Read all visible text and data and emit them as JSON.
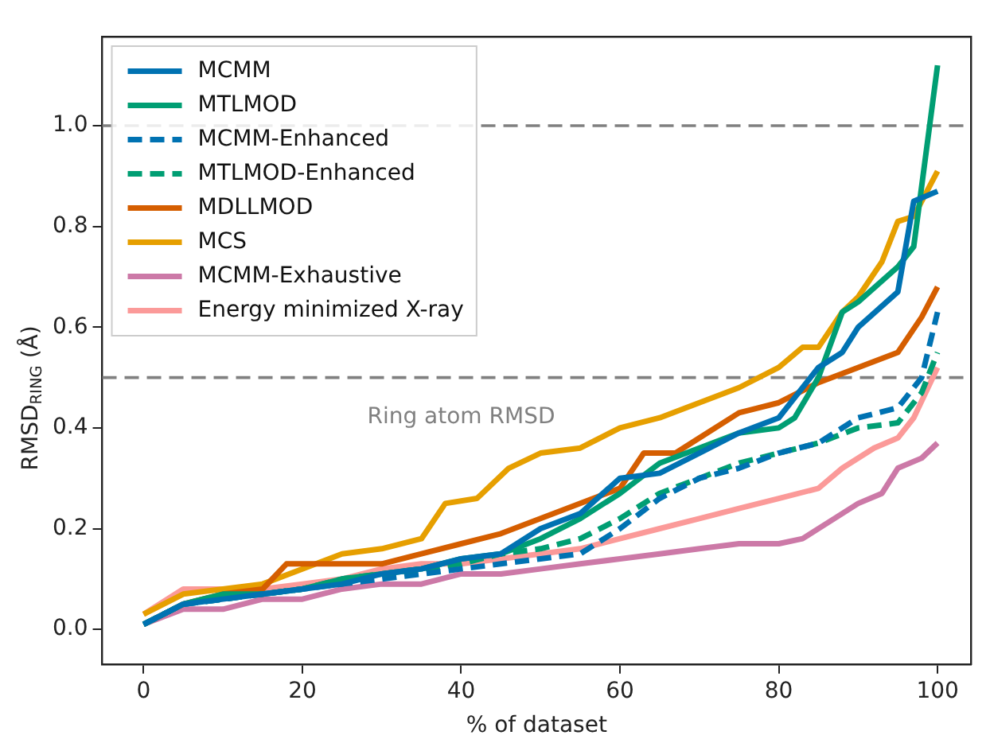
{
  "chart_data": {
    "type": "line",
    "xlabel": "% of dataset",
    "ylabel": "RMSD$_{RING}$ (Å)",
    "xlim": [
      -5.2,
      104.2
    ],
    "ylim": [
      -0.069,
      1.177
    ],
    "xticks": [
      0,
      20,
      40,
      60,
      80,
      100
    ],
    "yticks": [
      {
        "value": 0,
        "label": "0.0"
      },
      {
        "value": 0.2,
        "label": "0.2"
      },
      {
        "value": 0.4,
        "label": "0.4"
      },
      {
        "value": 0.6,
        "label": "0.6"
      },
      {
        "value": 0.8,
        "label": "0.8"
      },
      {
        "value": 1,
        "label": "1.0"
      }
    ],
    "grid": false,
    "legend": "top left",
    "marker": "none",
    "ref_lines": [
      {
        "axis": "y",
        "value": 1.0,
        "color": "#808080",
        "line_style": "dashed"
      },
      {
        "axis": "y",
        "value": 0.5,
        "label": "Ring atom RMSD",
        "color": "#808080",
        "line_style": "dashed"
      }
    ],
    "series": [
      {
        "name": "MCMM",
        "color": "#0072b2",
        "line_style": "solid",
        "x": [
          0,
          5,
          10,
          15,
          20,
          25,
          30,
          35,
          40,
          45,
          50,
          55,
          60,
          65,
          70,
          75,
          80,
          85,
          88,
          90,
          95,
          97,
          100
        ],
        "values": [
          0.01,
          0.05,
          0.06,
          0.07,
          0.08,
          0.09,
          0.11,
          0.12,
          0.14,
          0.15,
          0.2,
          0.23,
          0.3,
          0.31,
          0.35,
          0.39,
          0.42,
          0.52,
          0.55,
          0.6,
          0.67,
          0.85,
          0.87
        ]
      },
      {
        "name": "MTLMOD",
        "color": "#009e73",
        "line_style": "solid",
        "x": [
          0,
          5,
          10,
          15,
          20,
          25,
          30,
          35,
          40,
          45,
          50,
          55,
          60,
          65,
          70,
          75,
          80,
          82,
          85,
          88,
          90,
          95,
          97,
          100
        ],
        "values": [
          0.01,
          0.05,
          0.07,
          0.07,
          0.08,
          0.1,
          0.11,
          0.12,
          0.14,
          0.15,
          0.18,
          0.22,
          0.27,
          0.33,
          0.36,
          0.39,
          0.4,
          0.42,
          0.5,
          0.63,
          0.65,
          0.72,
          0.76,
          1.12
        ]
      },
      {
        "name": "MCMM-Enhanced",
        "color": "#0072b2",
        "line_style": "dashed",
        "x": [
          0,
          5,
          10,
          15,
          20,
          25,
          30,
          35,
          40,
          45,
          50,
          55,
          60,
          65,
          70,
          75,
          80,
          85,
          90,
          95,
          98,
          100
        ],
        "values": [
          0.01,
          0.05,
          0.06,
          0.07,
          0.08,
          0.09,
          0.1,
          0.11,
          0.12,
          0.13,
          0.14,
          0.15,
          0.2,
          0.26,
          0.3,
          0.32,
          0.35,
          0.37,
          0.42,
          0.44,
          0.5,
          0.63
        ]
      },
      {
        "name": "MTLMOD-Enhanced",
        "color": "#009e73",
        "line_style": "dashed",
        "x": [
          0,
          5,
          10,
          15,
          20,
          25,
          30,
          35,
          40,
          45,
          50,
          55,
          60,
          65,
          70,
          75,
          80,
          85,
          90,
          95,
          98,
          100
        ],
        "values": [
          0.01,
          0.05,
          0.06,
          0.07,
          0.08,
          0.1,
          0.11,
          0.12,
          0.13,
          0.15,
          0.16,
          0.18,
          0.22,
          0.27,
          0.3,
          0.33,
          0.35,
          0.37,
          0.4,
          0.41,
          0.47,
          0.55
        ]
      },
      {
        "name": "MDLLMOD",
        "color": "#d55e00",
        "line_style": "solid",
        "x": [
          0,
          5,
          10,
          15,
          18,
          25,
          30,
          35,
          40,
          45,
          50,
          55,
          60,
          63,
          67,
          70,
          75,
          80,
          85,
          90,
          95,
          98,
          100
        ],
        "values": [
          0.01,
          0.05,
          0.07,
          0.08,
          0.13,
          0.13,
          0.13,
          0.15,
          0.17,
          0.19,
          0.22,
          0.25,
          0.28,
          0.35,
          0.35,
          0.38,
          0.43,
          0.45,
          0.49,
          0.52,
          0.55,
          0.62,
          0.68
        ]
      },
      {
        "name": "MCS",
        "color": "#e69f00",
        "line_style": "solid",
        "x": [
          0,
          5,
          10,
          15,
          20,
          25,
          30,
          35,
          38,
          42,
          46,
          50,
          55,
          60,
          65,
          70,
          75,
          80,
          83,
          85,
          88,
          90,
          93,
          95,
          97,
          100
        ],
        "values": [
          0.03,
          0.07,
          0.08,
          0.09,
          0.12,
          0.15,
          0.16,
          0.18,
          0.25,
          0.26,
          0.32,
          0.35,
          0.36,
          0.4,
          0.42,
          0.45,
          0.48,
          0.52,
          0.56,
          0.56,
          0.63,
          0.66,
          0.73,
          0.81,
          0.82,
          0.91
        ]
      },
      {
        "name": "MCMM-Exhaustive",
        "color": "#cc79a7",
        "line_style": "solid",
        "x": [
          0,
          5,
          10,
          15,
          20,
          25,
          30,
          35,
          40,
          45,
          50,
          55,
          60,
          65,
          70,
          75,
          80,
          83,
          87,
          90,
          93,
          95,
          98,
          100
        ],
        "values": [
          0.01,
          0.04,
          0.04,
          0.06,
          0.06,
          0.08,
          0.09,
          0.09,
          0.11,
          0.11,
          0.12,
          0.13,
          0.14,
          0.15,
          0.16,
          0.17,
          0.17,
          0.18,
          0.22,
          0.25,
          0.27,
          0.32,
          0.34,
          0.37
        ]
      },
      {
        "name": "Energy minimized X-ray",
        "color": "#fb9a99",
        "line_style": "solid",
        "x": [
          0,
          5,
          10,
          15,
          20,
          25,
          30,
          35,
          40,
          45,
          50,
          55,
          60,
          65,
          70,
          75,
          80,
          85,
          88,
          92,
          95,
          97,
          100
        ],
        "values": [
          0.03,
          0.08,
          0.08,
          0.08,
          0.09,
          0.1,
          0.12,
          0.13,
          0.13,
          0.14,
          0.15,
          0.16,
          0.18,
          0.2,
          0.22,
          0.24,
          0.26,
          0.28,
          0.32,
          0.36,
          0.38,
          0.42,
          0.52
        ]
      }
    ]
  }
}
